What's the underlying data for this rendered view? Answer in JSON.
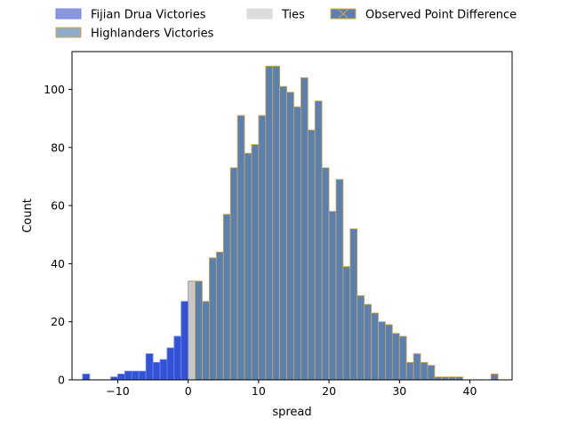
{
  "chart_data": {
    "type": "bar",
    "title": "",
    "xlabel": "spread",
    "ylabel": "Count",
    "xlim": [
      -16.5,
      46
    ],
    "ylim": [
      0,
      113
    ],
    "xticks": [
      -10,
      0,
      10,
      20,
      30,
      40
    ],
    "yticks": [
      0,
      20,
      40,
      60,
      80,
      100
    ],
    "bin_width": 1,
    "grid": false,
    "legend_position": "above plot, three columns",
    "legend": [
      {
        "key": "fijian",
        "label": "Fijian Drua Victories"
      },
      {
        "key": "ties",
        "label": "Ties"
      },
      {
        "key": "observed",
        "label": "Observed Point Difference"
      },
      {
        "key": "highlanders",
        "label": "Highlanders Victories"
      }
    ],
    "series": [
      {
        "key": "fijian",
        "name": "Fijian Drua Victories",
        "bin_starts": [
          -15,
          -11,
          -10,
          -9,
          -8,
          -7,
          -6,
          -5,
          -4,
          -3,
          -2,
          -1
        ],
        "values": [
          2,
          1,
          2,
          3,
          3,
          3,
          9,
          6,
          7,
          11,
          15,
          27
        ]
      },
      {
        "key": "ties",
        "name": "Ties",
        "bin_starts": [
          0
        ],
        "values": [
          34
        ]
      },
      {
        "key": "highlanders",
        "name": "Highlanders Victories",
        "bin_starts": [
          1,
          2,
          3,
          4,
          5,
          6,
          7,
          8,
          9,
          10,
          11,
          12,
          13,
          14,
          15,
          16,
          17,
          18,
          19,
          20,
          21,
          22,
          23,
          24,
          25,
          26,
          27,
          28,
          29,
          30,
          31,
          32,
          33,
          34,
          35,
          36,
          37,
          38,
          43
        ],
        "values": [
          34,
          27,
          42,
          44,
          57,
          73,
          91,
          78,
          81,
          91,
          108,
          108,
          101,
          99,
          94,
          104,
          86,
          96,
          73,
          58,
          69,
          39,
          52,
          29,
          26,
          23,
          20,
          19,
          16,
          15,
          6,
          9,
          6,
          5,
          1,
          1,
          1,
          1,
          2
        ]
      }
    ],
    "colors": {
      "fijian": "#3352d6",
      "fijian_edge": "#6b88e8",
      "ties": "#c8c8c8",
      "ties_edge": "#8a8a8a",
      "highlanders": "#5a80b2",
      "highlanders_edge": "#d9a63a",
      "observed": "#5a80b2",
      "observed_edge": "#d9a63a",
      "legend_fijian": "#8a96dd",
      "legend_highlanders": "#8eabcc",
      "legend_ties": "#dcdcdc"
    }
  }
}
